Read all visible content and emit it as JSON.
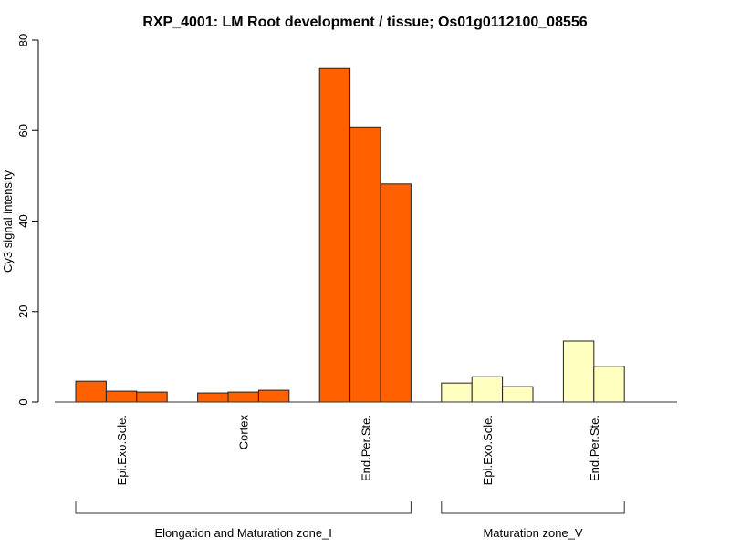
{
  "chart_data": {
    "type": "bar",
    "title": "RXP_4001: LM Root development / tissue; Os01g0112100_08556",
    "xlabel": "",
    "ylabel": "Cy3 signal intensity",
    "ylim": [
      0,
      80
    ],
    "yticks": [
      "0",
      "20",
      "40",
      "60",
      "80"
    ],
    "grid": false,
    "groups": [
      {
        "name": "Elongation and Maturation zone_I",
        "color": "#FF6000",
        "categories": [
          {
            "label": "Epi.Exo.Scle.",
            "values": [
              4.6,
              2.4,
              2.2
            ]
          },
          {
            "label": "Cortex",
            "values": [
              2.0,
              2.2,
              2.6
            ]
          },
          {
            "label": "End.Per.Ste.",
            "values": [
              73.7,
              60.8,
              48.2
            ]
          }
        ]
      },
      {
        "name": "Maturation zone_V",
        "color": "#FFFFC0",
        "categories": [
          {
            "label": "Epi.Exo.Scle.",
            "values": [
              4.2,
              5.6,
              3.4
            ]
          },
          {
            "label": "End.Per.Ste.",
            "values": [
              13.5,
              7.9
            ]
          }
        ]
      }
    ]
  }
}
